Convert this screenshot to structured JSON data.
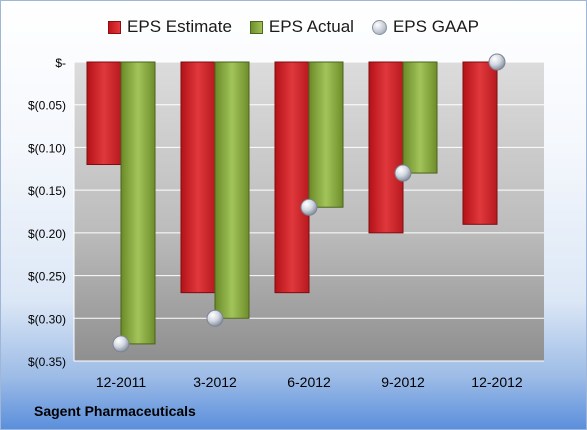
{
  "chart_data": {
    "type": "bar",
    "categories": [
      "12-2011",
      "3-2012",
      "6-2012",
      "9-2012",
      "12-2012"
    ],
    "series": [
      {
        "name": "EPS Estimate",
        "kind": "bar",
        "color": "#d42a2e",
        "values": [
          -0.12,
          -0.27,
          -0.27,
          -0.2,
          -0.19
        ]
      },
      {
        "name": "EPS Actual",
        "kind": "bar",
        "color": "#8db045",
        "values": [
          -0.33,
          -0.3,
          -0.17,
          -0.13,
          null
        ]
      },
      {
        "name": "EPS GAAP",
        "kind": "marker",
        "color": "#c9ced8",
        "values": [
          -0.33,
          -0.3,
          -0.17,
          -0.13,
          0.0
        ]
      }
    ],
    "yticks": [
      {
        "value": 0,
        "label": "$-"
      },
      {
        "value": -0.05,
        "label": "$(0.05)"
      },
      {
        "value": -0.1,
        "label": "$(0.10)"
      },
      {
        "value": -0.15,
        "label": "$(0.15)"
      },
      {
        "value": -0.2,
        "label": "$(0.20)"
      },
      {
        "value": -0.25,
        "label": "$(0.25)"
      },
      {
        "value": -0.3,
        "label": "$(0.30)"
      },
      {
        "value": -0.35,
        "label": "$(0.35)"
      }
    ],
    "ylim": [
      -0.35,
      0
    ],
    "grid": true,
    "legend_position": "top"
  },
  "legend": {
    "estimate_label": "EPS Estimate",
    "actual_label": "EPS Actual",
    "gaap_label": "EPS GAAP"
  },
  "footer": {
    "company": "Sagent Pharmaceuticals"
  }
}
